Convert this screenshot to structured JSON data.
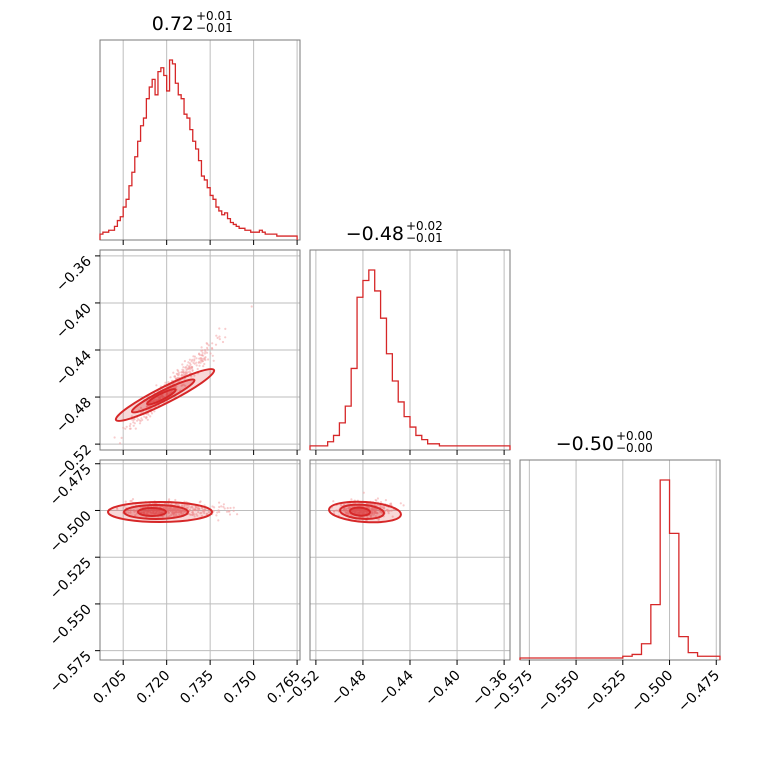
{
  "chart_data": {
    "type": "corner",
    "color": "#d62728",
    "scatter_color": "#f3a2a4",
    "parameters": [
      {
        "title": {
          "main": "0.72",
          "upper": "+0.01",
          "lower": "−0.01"
        },
        "range": [
          0.697,
          0.766
        ],
        "ticks": [
          0.705,
          0.72,
          0.735,
          0.75,
          0.765
        ],
        "tick_labels": [
          "0.705",
          "0.720",
          "0.735",
          "0.750",
          "0.765"
        ]
      },
      {
        "title": {
          "main": "−0.48",
          "upper": "+0.02",
          "lower": "−0.01"
        },
        "range": [
          -0.525,
          -0.355
        ],
        "ticks": [
          -0.52,
          -0.48,
          -0.44,
          -0.4,
          -0.36
        ],
        "tick_labels": [
          "−0.52",
          "−0.48",
          "−0.44",
          "−0.40",
          "−0.36"
        ]
      },
      {
        "title": {
          "main": "−0.50",
          "upper": "+0.00",
          "lower": "−0.00"
        },
        "range": [
          -0.58,
          -0.473
        ],
        "ticks": [
          -0.575,
          -0.55,
          -0.525,
          -0.5,
          -0.475
        ],
        "tick_labels": [
          "−0.575",
          "−0.550",
          "−0.525",
          "−0.500",
          "−0.475"
        ]
      }
    ],
    "histograms": [
      {
        "param": 0,
        "edges": [
          0.697,
          0.698,
          0.699,
          0.7,
          0.701,
          0.702,
          0.703,
          0.704,
          0.705,
          0.706,
          0.707,
          0.708,
          0.709,
          0.71,
          0.711,
          0.712,
          0.713,
          0.714,
          0.715,
          0.716,
          0.717,
          0.718,
          0.719,
          0.72,
          0.721,
          0.722,
          0.723,
          0.724,
          0.725,
          0.726,
          0.727,
          0.728,
          0.729,
          0.73,
          0.731,
          0.732,
          0.733,
          0.734,
          0.735,
          0.736,
          0.737,
          0.738,
          0.739,
          0.74,
          0.741,
          0.742,
          0.743,
          0.744,
          0.745,
          0.746,
          0.747,
          0.748,
          0.749,
          0.75,
          0.751,
          0.752,
          0.753,
          0.754,
          0.755,
          0.756,
          0.757,
          0.758,
          0.759,
          0.76,
          0.761,
          0.762,
          0.763,
          0.764,
          0.765
        ],
        "counts": [
          2,
          3,
          3,
          4,
          4,
          6,
          9,
          11,
          16,
          20,
          27,
          34,
          42,
          50,
          58,
          62,
          72,
          78,
          82,
          74,
          86,
          88,
          84,
          76,
          92,
          90,
          80,
          74,
          72,
          64,
          62,
          56,
          50,
          46,
          40,
          32,
          30,
          26,
          22,
          20,
          16,
          14,
          12,
          13,
          10,
          8,
          7,
          6,
          5,
          5,
          4,
          4,
          3,
          3,
          3,
          4,
          3,
          2,
          2,
          2,
          2,
          1,
          1,
          1,
          1,
          1,
          1,
          1
        ]
      },
      {
        "param": 1,
        "edges": [
          -0.525,
          -0.52,
          -0.515,
          -0.51,
          -0.505,
          -0.5,
          -0.495,
          -0.49,
          -0.485,
          -0.48,
          -0.475,
          -0.47,
          -0.465,
          -0.46,
          -0.455,
          -0.45,
          -0.445,
          -0.44,
          -0.435,
          -0.43,
          -0.425,
          -0.42,
          -0.415,
          -0.41,
          -0.405,
          -0.4,
          -0.395,
          -0.39,
          -0.385,
          -0.38,
          -0.375,
          -0.37,
          -0.365,
          -0.36,
          -0.355
        ],
        "counts": [
          1,
          1,
          1,
          3,
          6,
          12,
          20,
          38,
          72,
          80,
          85,
          75,
          62,
          45,
          32,
          22,
          15,
          10,
          6,
          4,
          2,
          2,
          1,
          1,
          1,
          1,
          1,
          1,
          1,
          1,
          1,
          1,
          1,
          1
        ]
      },
      {
        "param": 2,
        "edges": [
          -0.58,
          -0.575,
          -0.57,
          -0.565,
          -0.56,
          -0.555,
          -0.55,
          -0.545,
          -0.54,
          -0.535,
          -0.53,
          -0.525,
          -0.52,
          -0.515,
          -0.51,
          -0.505,
          -0.5,
          -0.495,
          -0.49,
          -0.485,
          -0.48,
          -0.475,
          -0.473
        ],
        "counts": [
          0,
          0,
          0,
          0,
          0,
          0,
          0,
          0,
          0,
          0,
          0,
          1,
          2,
          8,
          30,
          100,
          70,
          12,
          3,
          1,
          1,
          1
        ]
      }
    ]
  }
}
